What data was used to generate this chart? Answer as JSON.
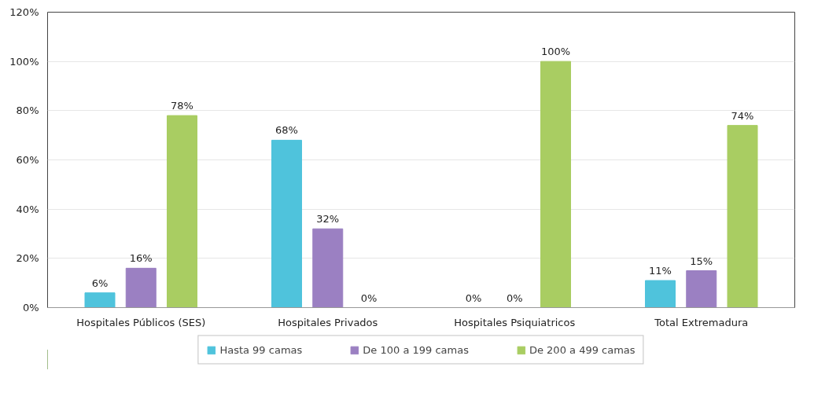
{
  "chart_data": {
    "type": "bar",
    "categories": [
      "Hospitales Públicos (SES)",
      "Hospitales Privados",
      "Hospitales Psiquiatricos",
      "Total Extremadura"
    ],
    "series": [
      {
        "name": "Hasta 99 camas",
        "color": "#4fc3dc",
        "values": [
          6,
          68,
          0,
          11
        ],
        "value_labels": [
          "6%",
          "68%",
          "0%",
          "11%"
        ]
      },
      {
        "name": "De 100 a 199 camas",
        "color": "#9b80c2",
        "values": [
          16,
          32,
          0,
          15
        ],
        "value_labels": [
          "16%",
          "32%",
          "0%",
          "15%"
        ]
      },
      {
        "name": "De 200 a 499 camas",
        "color": "#a9cd62",
        "values": [
          78,
          0,
          100,
          74
        ],
        "value_labels": [
          "78%",
          "0%",
          "100%",
          "74%"
        ]
      }
    ],
    "ylim": [
      0,
      120
    ],
    "yticks": [
      {
        "value": 0,
        "label": "0%"
      },
      {
        "value": 20,
        "label": "20%"
      },
      {
        "value": 40,
        "label": "40%"
      },
      {
        "value": 60,
        "label": "60%"
      },
      {
        "value": 80,
        "label": "80%"
      },
      {
        "value": 100,
        "label": "100%"
      },
      {
        "value": 120,
        "label": "120%"
      }
    ],
    "grid": "y",
    "legend": "bottom"
  }
}
